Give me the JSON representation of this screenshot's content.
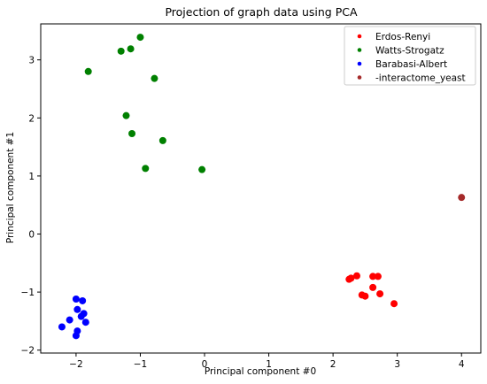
{
  "chart_data": {
    "type": "scatter",
    "title": "Projection of graph data using PCA",
    "xlabel": "Principal component #0",
    "ylabel": "Principal component #1",
    "xlim": [
      -2.55,
      4.3
    ],
    "ylim": [
      -2.05,
      3.62
    ],
    "xticks": [
      -2,
      -1,
      0,
      1,
      2,
      3,
      4
    ],
    "yticks": [
      -2,
      -1,
      0,
      1,
      2,
      3
    ],
    "grid": false,
    "legend_position": "top-right",
    "series": [
      {
        "name": "Erdos-Renyi",
        "color": "#ff0000",
        "points": [
          [
            2.25,
            -0.78
          ],
          [
            2.28,
            -0.76
          ],
          [
            2.37,
            -0.72
          ],
          [
            2.45,
            -1.05
          ],
          [
            2.5,
            -1.07
          ],
          [
            2.62,
            -0.73
          ],
          [
            2.62,
            -0.92
          ],
          [
            2.7,
            -0.73
          ],
          [
            2.73,
            -1.03
          ],
          [
            2.95,
            -1.2
          ]
        ]
      },
      {
        "name": "Watts-Strogatz",
        "color": "#008000",
        "points": [
          [
            -1.81,
            2.8
          ],
          [
            -1.3,
            3.15
          ],
          [
            -1.15,
            3.19
          ],
          [
            -1.0,
            3.39
          ],
          [
            -0.78,
            2.68
          ],
          [
            -1.22,
            2.04
          ],
          [
            -1.13,
            1.73
          ],
          [
            -0.65,
            1.61
          ],
          [
            -0.92,
            1.13
          ],
          [
            -0.04,
            1.11
          ]
        ]
      },
      {
        "name": "Barabasi-Albert",
        "color": "#0000ff",
        "points": [
          [
            -2.0,
            -1.12
          ],
          [
            -1.9,
            -1.15
          ],
          [
            -1.98,
            -1.3
          ],
          [
            -1.88,
            -1.37
          ],
          [
            -1.92,
            -1.42
          ],
          [
            -2.1,
            -1.48
          ],
          [
            -1.85,
            -1.52
          ],
          [
            -2.22,
            -1.6
          ],
          [
            -1.98,
            -1.67
          ],
          [
            -2.0,
            -1.75
          ]
        ]
      },
      {
        "name": "-interactome_yeast",
        "color": "#a52a2a",
        "points": [
          [
            4.0,
            0.63
          ]
        ]
      }
    ]
  }
}
